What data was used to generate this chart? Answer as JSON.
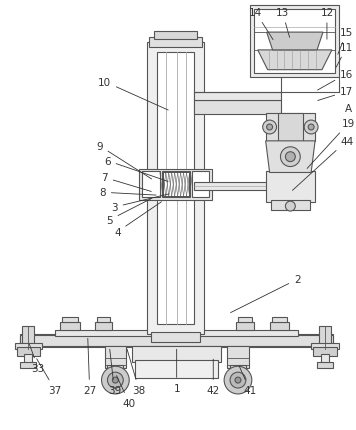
{
  "background_color": "#ffffff",
  "line_color": "#555555",
  "label_color": "#333333",
  "figsize": [
    3.56,
    4.31
  ],
  "dpi": 100
}
